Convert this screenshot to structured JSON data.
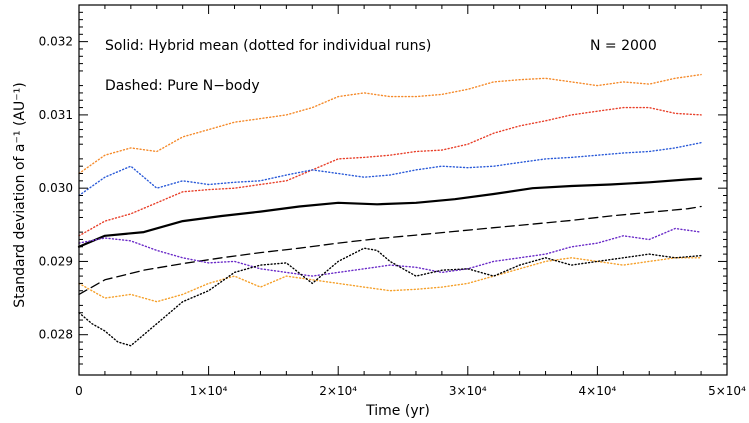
{
  "chart_data": {
    "type": "line",
    "xlabel": "Time (yr)",
    "ylabel": "Standard deviation of a⁻¹ (AU⁻¹)",
    "xlim": [
      0,
      50000
    ],
    "ylim": [
      0.02745,
      0.0325
    ],
    "x_tick_labels": [
      "0",
      "1×10⁴",
      "2×10⁴",
      "3×10⁴",
      "4×10⁴",
      "5×10⁴"
    ],
    "x_tick_values": [
      0,
      10000,
      20000,
      30000,
      40000,
      50000
    ],
    "y_tick_labels": [
      "0.028",
      "0.029",
      "0.030",
      "0.031",
      "0.032"
    ],
    "y_tick_values": [
      0.028,
      0.029,
      0.03,
      0.031,
      0.032
    ],
    "annotations": {
      "solid": "Solid: Hybrid mean (dotted for individual runs)",
      "dashed": "Dashed: Pure N−body",
      "n_label": "N = 2000"
    },
    "series": [
      {
        "style": "solid",
        "color": "#000000",
        "x": [
          0,
          2000,
          5000,
          8000,
          11000,
          14000,
          17000,
          20000,
          23000,
          26000,
          29000,
          32000,
          35000,
          38000,
          41000,
          44000,
          47000,
          48000
        ],
        "y": [
          0.0292,
          0.02935,
          0.0294,
          0.02955,
          0.02962,
          0.02968,
          0.02975,
          0.0298,
          0.02978,
          0.0298,
          0.02985,
          0.02992,
          0.03,
          0.03003,
          0.03005,
          0.03008,
          0.03012,
          0.03013
        ]
      },
      {
        "style": "dashed",
        "color": "#000000",
        "x": [
          0,
          2000,
          5000,
          8000,
          11000,
          14000,
          17000,
          20000,
          23000,
          26000,
          29000,
          32000,
          35000,
          38000,
          41000,
          44000,
          47000,
          48000
        ],
        "y": [
          0.02855,
          0.02875,
          0.02888,
          0.02897,
          0.02905,
          0.02912,
          0.02918,
          0.02925,
          0.02931,
          0.02936,
          0.02941,
          0.02946,
          0.02951,
          0.02956,
          0.02962,
          0.02967,
          0.02972,
          0.02975
        ]
      },
      {
        "style": "dotted",
        "color": "#f58a2a",
        "x": [
          0,
          2000,
          4000,
          6000,
          8000,
          10000,
          12000,
          14000,
          16000,
          18000,
          20000,
          22000,
          24000,
          26000,
          28000,
          30000,
          32000,
          34000,
          36000,
          38000,
          40000,
          42000,
          44000,
          46000,
          48000
        ],
        "y": [
          0.0302,
          0.03045,
          0.03055,
          0.0305,
          0.0307,
          0.0308,
          0.0309,
          0.03095,
          0.031,
          0.0311,
          0.03125,
          0.0313,
          0.03125,
          0.03125,
          0.03128,
          0.03135,
          0.03145,
          0.03148,
          0.0315,
          0.03145,
          0.0314,
          0.03145,
          0.03142,
          0.0315,
          0.03155
        ]
      },
      {
        "style": "dotted",
        "color": "#e8402a",
        "x": [
          0,
          2000,
          4000,
          6000,
          8000,
          10000,
          12000,
          14000,
          16000,
          18000,
          20000,
          22000,
          24000,
          26000,
          28000,
          30000,
          32000,
          34000,
          36000,
          38000,
          40000,
          42000,
          44000,
          46000,
          48000
        ],
        "y": [
          0.02935,
          0.02955,
          0.02965,
          0.0298,
          0.02995,
          0.02998,
          0.03,
          0.03005,
          0.0301,
          0.03025,
          0.0304,
          0.03042,
          0.03045,
          0.0305,
          0.03052,
          0.0306,
          0.03075,
          0.03085,
          0.03092,
          0.031,
          0.03105,
          0.0311,
          0.0311,
          0.03102,
          0.031
        ]
      },
      {
        "style": "dotted",
        "color": "#2a5ad8",
        "x": [
          0,
          2000,
          4000,
          6000,
          8000,
          10000,
          12000,
          14000,
          16000,
          18000,
          20000,
          22000,
          24000,
          26000,
          28000,
          30000,
          32000,
          34000,
          36000,
          38000,
          40000,
          42000,
          44000,
          46000,
          48000
        ],
        "y": [
          0.0299,
          0.03015,
          0.0303,
          0.03,
          0.0301,
          0.03005,
          0.03008,
          0.0301,
          0.03018,
          0.03025,
          0.0302,
          0.03015,
          0.03018,
          0.03025,
          0.0303,
          0.03028,
          0.0303,
          0.03035,
          0.0304,
          0.03042,
          0.03045,
          0.03048,
          0.0305,
          0.03055,
          0.03062
        ]
      },
      {
        "style": "dotted",
        "color": "#6a2ac8",
        "x": [
          0,
          2000,
          4000,
          6000,
          8000,
          10000,
          12000,
          14000,
          16000,
          18000,
          20000,
          22000,
          24000,
          26000,
          28000,
          30000,
          32000,
          34000,
          36000,
          38000,
          40000,
          42000,
          44000,
          46000,
          48000
        ],
        "y": [
          0.02925,
          0.02932,
          0.02928,
          0.02915,
          0.02905,
          0.02898,
          0.029,
          0.0289,
          0.02885,
          0.0288,
          0.02885,
          0.0289,
          0.02895,
          0.02892,
          0.02885,
          0.0289,
          0.029,
          0.02905,
          0.0291,
          0.0292,
          0.02925,
          0.02935,
          0.0293,
          0.02945,
          0.0294
        ]
      },
      {
        "style": "dotted",
        "color": "#f5a02a",
        "x": [
          0,
          2000,
          4000,
          6000,
          8000,
          10000,
          12000,
          14000,
          16000,
          18000,
          20000,
          22000,
          24000,
          26000,
          28000,
          30000,
          32000,
          34000,
          36000,
          38000,
          40000,
          42000,
          44000,
          46000,
          48000
        ],
        "y": [
          0.0287,
          0.0285,
          0.02855,
          0.02845,
          0.02855,
          0.0287,
          0.0288,
          0.02865,
          0.0288,
          0.02875,
          0.0287,
          0.02865,
          0.0286,
          0.02862,
          0.02865,
          0.0287,
          0.0288,
          0.0289,
          0.029,
          0.02905,
          0.029,
          0.02895,
          0.029,
          0.02905,
          0.02905
        ]
      },
      {
        "style": "dotted",
        "color": "#000000",
        "x": [
          0,
          1000,
          2000,
          3000,
          4000,
          6000,
          8000,
          10000,
          12000,
          14000,
          16000,
          18000,
          20000,
          22000,
          23000,
          24000,
          26000,
          28000,
          30000,
          32000,
          34000,
          36000,
          38000,
          40000,
          42000,
          44000,
          46000,
          48000
        ],
        "y": [
          0.0283,
          0.02815,
          0.02805,
          0.0279,
          0.02785,
          0.02815,
          0.02845,
          0.0286,
          0.02885,
          0.02895,
          0.02898,
          0.0287,
          0.029,
          0.02918,
          0.02915,
          0.029,
          0.0288,
          0.02888,
          0.0289,
          0.0288,
          0.02895,
          0.02905,
          0.02895,
          0.029,
          0.02905,
          0.0291,
          0.02905,
          0.02908
        ]
      }
    ]
  }
}
